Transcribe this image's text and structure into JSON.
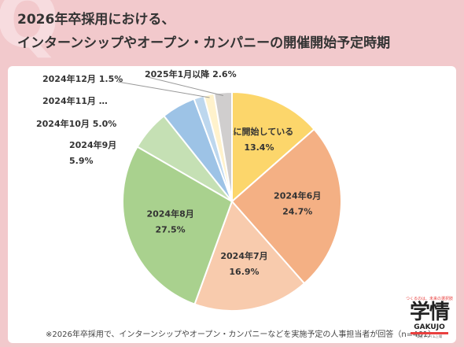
{
  "decor": {
    "quote_mark": "Q"
  },
  "title": {
    "line1": "2026年卒採用における、",
    "line2": "インターンシップやオープン・カンパニーの開催開始予定時期"
  },
  "chart_data": {
    "type": "pie",
    "slices": [
      {
        "label": "既に開始している",
        "value": 13.4,
        "value_label": "13.4%",
        "color": "#fcd66b",
        "placement": "inside"
      },
      {
        "label": "2024年6月",
        "value": 24.7,
        "value_label": "24.7%",
        "color": "#f4b084",
        "placement": "inside"
      },
      {
        "label": "2024年7月",
        "value": 16.9,
        "value_label": "16.9%",
        "color": "#f8cbad",
        "placement": "inside"
      },
      {
        "label": "2024年8月",
        "value": 27.5,
        "value_label": "27.5%",
        "color": "#a9d18e",
        "placement": "inside"
      },
      {
        "label": "2024年9月",
        "value": 5.9,
        "value_label": "5.9%",
        "color": "#c5e0b4",
        "placement": "outside-two-line"
      },
      {
        "label": "2024年10月",
        "value": 5.0,
        "value_label": "5.0%",
        "color": "#9dc3e6",
        "placement": "outside"
      },
      {
        "label": "2024年11月",
        "value": 1.5,
        "value_label": "…",
        "color": "#bdd7ee",
        "placement": "outside"
      },
      {
        "label": "2024年12月",
        "value": 1.5,
        "value_label": "1.5%",
        "color": "#fff2cc",
        "placement": "outside"
      },
      {
        "label": "2025年1月以降",
        "value": 2.6,
        "value_label": "2.6%",
        "color": "#d0cece",
        "placement": "outside"
      }
    ]
  },
  "footnote": "※2026年卒採用で、インターンシップやオープン・カンパニーなどを実施予定の人事担当者が回答（n=461）",
  "logo": {
    "tagline": "つくるのは、未来の選択肢",
    "main": "学情",
    "sub": "GAKUJO",
    "small": "東証プライム上場"
  }
}
